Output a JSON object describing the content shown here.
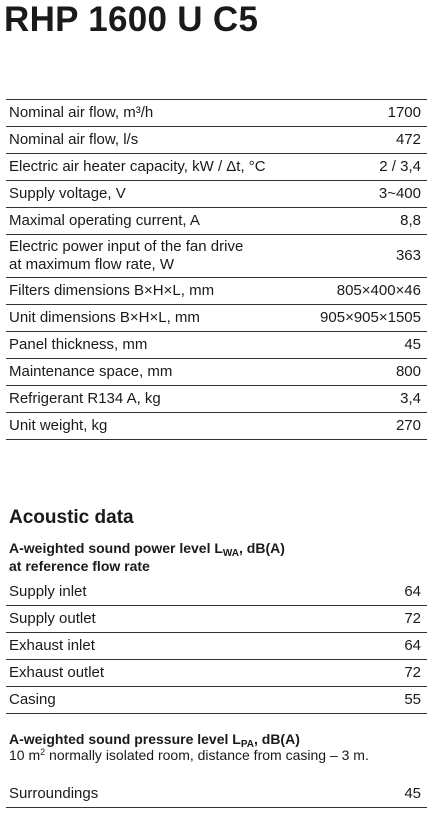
{
  "title": "RHP 1600 U C5",
  "specs": [
    {
      "label": "Nominal air flow, m³/h",
      "value": "1700"
    },
    {
      "label": "Nominal air flow, l/s",
      "value": "472"
    },
    {
      "label": "Electric air heater capacity, kW / Δt, °C",
      "value": "2 / 3,4"
    },
    {
      "label": "Supply voltage, V",
      "value": "3~400"
    },
    {
      "label": "Maximal operating current, A",
      "value": "8,8"
    },
    {
      "label": "Electric power input of the fan drive\nat maximum flow rate, W",
      "value": "363"
    },
    {
      "label": "Filters dimensions B×H×L, mm",
      "value": "805×400×46"
    },
    {
      "label": "Unit dimensions B×H×L, mm",
      "value": "905×905×1505"
    },
    {
      "label": "Panel thickness, mm",
      "value": "45"
    },
    {
      "label": "Maintenance space, mm",
      "value": "800"
    },
    {
      "label": "Refrigerant R134 A, kg",
      "value": "3,4"
    },
    {
      "label": "Unit weight, kg",
      "value": "270"
    }
  ],
  "acoustic": {
    "title": "Acoustic data",
    "power_heading_pre": "A-weighted sound power level L",
    "power_heading_sub": "WA",
    "power_heading_post": ", dB(A)",
    "power_heading_line2": "at reference flow rate",
    "power_rows": [
      {
        "label": "Supply inlet",
        "value": "64"
      },
      {
        "label": "Supply outlet",
        "value": "72"
      },
      {
        "label": "Exhaust inlet",
        "value": "64"
      },
      {
        "label": "Exhaust outlet",
        "value": "72"
      },
      {
        "label": "Casing",
        "value": "55"
      }
    ],
    "pressure_heading_pre": "A-weighted sound pressure level L",
    "pressure_heading_sub": "PA",
    "pressure_heading_post": ", dB(A)",
    "note_pre": "10 m",
    "note_sup": "2",
    "note_post": " normally isolated room, distance from casing – 3 m.",
    "pressure_rows": [
      {
        "label": "Surroundings",
        "value": "45"
      }
    ]
  }
}
